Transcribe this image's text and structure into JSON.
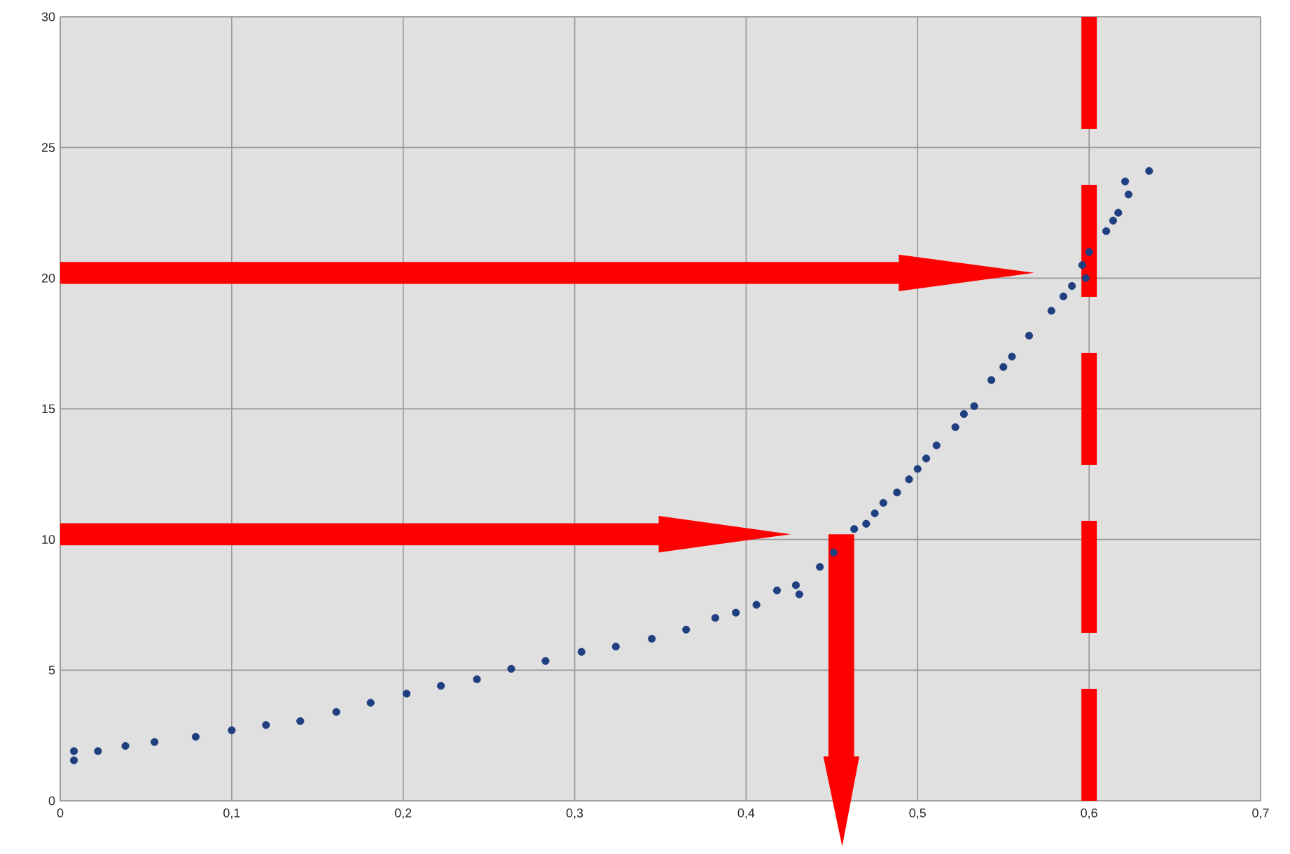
{
  "chart_data": {
    "type": "scatter",
    "marker": "circle",
    "grid": true,
    "xlim": [
      0,
      0.7
    ],
    "ylim": [
      0,
      30
    ],
    "xticks": [
      0,
      {
        "value": 0.1,
        "label": "0,1"
      },
      {
        "value": 0.2,
        "label": "0,2"
      },
      {
        "value": 0.3,
        "label": "0,3"
      },
      {
        "value": 0.4,
        "label": "0,4"
      },
      {
        "value": 0.5,
        "label": "0,5"
      },
      {
        "value": 0.6,
        "label": "0,6"
      },
      {
        "value": 0.7,
        "label": "0,7"
      }
    ],
    "yticks": [
      0,
      5,
      10,
      15,
      20,
      25,
      30
    ],
    "ref_lines": [
      {
        "axis": "x",
        "value": 0.6,
        "color": "#ff0000",
        "line_style": "dashed"
      }
    ],
    "series": [
      {
        "color": "#203f80",
        "x": [
          0.008,
          0.008,
          0.022,
          0.038,
          0.055,
          0.079,
          0.1,
          0.12,
          0.14,
          0.161,
          0.181,
          0.202,
          0.222,
          0.243,
          0.263,
          0.283,
          0.304,
          0.324,
          0.345,
          0.365,
          0.382,
          0.394,
          0.406,
          0.418,
          0.429,
          0.431,
          0.443,
          0.451,
          0.463,
          0.47,
          0.475,
          0.48,
          0.488,
          0.495,
          0.5,
          0.505,
          0.511,
          0.522,
          0.527,
          0.533,
          0.543,
          0.55,
          0.555,
          0.565,
          0.578,
          0.585,
          0.59,
          0.596,
          0.598,
          0.6,
          0.61,
          0.614,
          0.617,
          0.621,
          0.623,
          0.635
        ],
        "values": [
          1.9,
          1.55,
          1.9,
          2.1,
          2.25,
          2.45,
          2.7,
          2.9,
          3.05,
          3.4,
          3.75,
          4.1,
          4.4,
          4.65,
          5.05,
          5.35,
          5.7,
          5.9,
          6.2,
          6.55,
          7.0,
          7.2,
          7.5,
          8.05,
          8.25,
          7.9,
          8.95,
          9.5,
          10.4,
          10.6,
          11.0,
          11.4,
          11.8,
          12.3,
          12.7,
          13.1,
          13.6,
          14.3,
          14.8,
          15.1,
          16.1,
          16.6,
          17.0,
          17.8,
          18.75,
          19.3,
          19.7,
          20.5,
          20.0,
          21.0,
          21.8,
          22.2,
          22.5,
          23.7,
          23.2,
          24.1
        ]
      }
    ]
  }
}
